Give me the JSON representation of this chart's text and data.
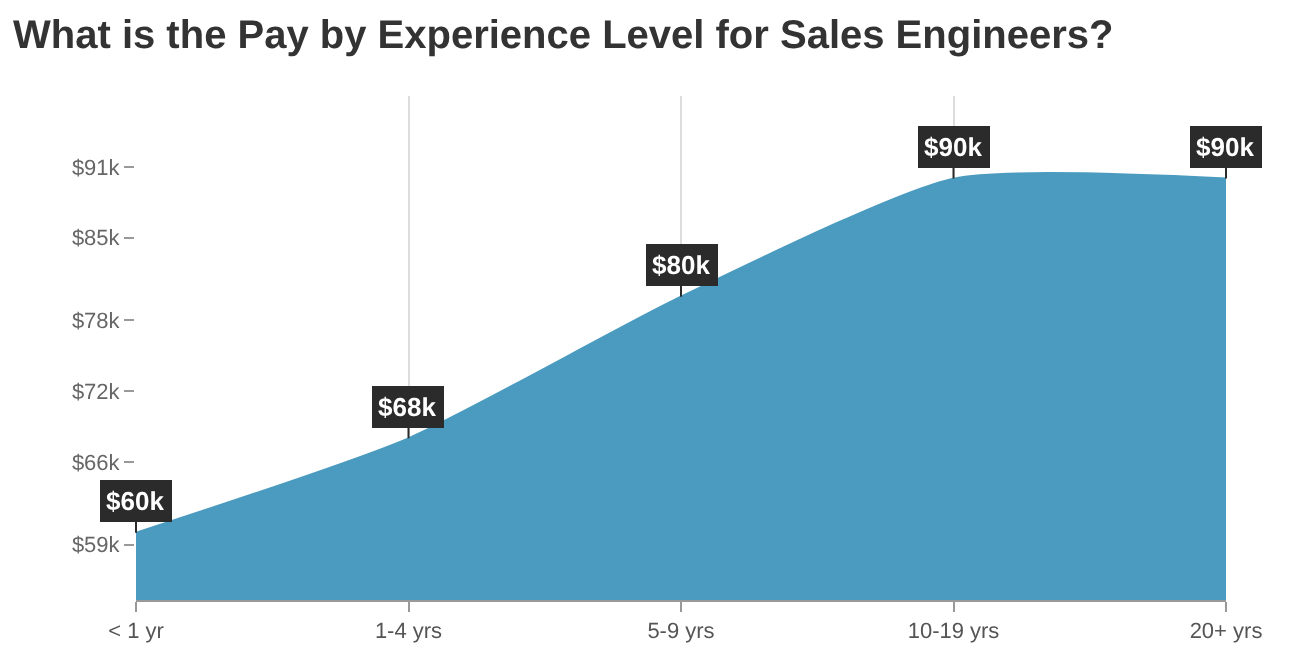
{
  "chart_data": {
    "type": "area",
    "title": "What is the Pay by Experience Level for Sales Engineers?",
    "categories": [
      "< 1 yr",
      "1-4 yrs",
      "5-9 yrs",
      "10-19 yrs",
      "20+ yrs"
    ],
    "series": [
      {
        "color": "#4a9bbf",
        "values": [
          60,
          68,
          80,
          90,
          90
        ]
      }
    ],
    "value_labels": [
      "$60k",
      "$68k",
      "$80k",
      "$90k",
      "$90k"
    ],
    "ylim": [
      54.3,
      97
    ],
    "yticks": [
      {
        "value": 59,
        "label": "$59k"
      },
      {
        "value": 66,
        "label": "$66k"
      },
      {
        "value": 72,
        "label": "$72k"
      },
      {
        "value": 78,
        "label": "$78k"
      },
      {
        "value": 85,
        "label": "$85k"
      },
      {
        "value": 91,
        "label": "$91k"
      }
    ],
    "grid": "x"
  }
}
